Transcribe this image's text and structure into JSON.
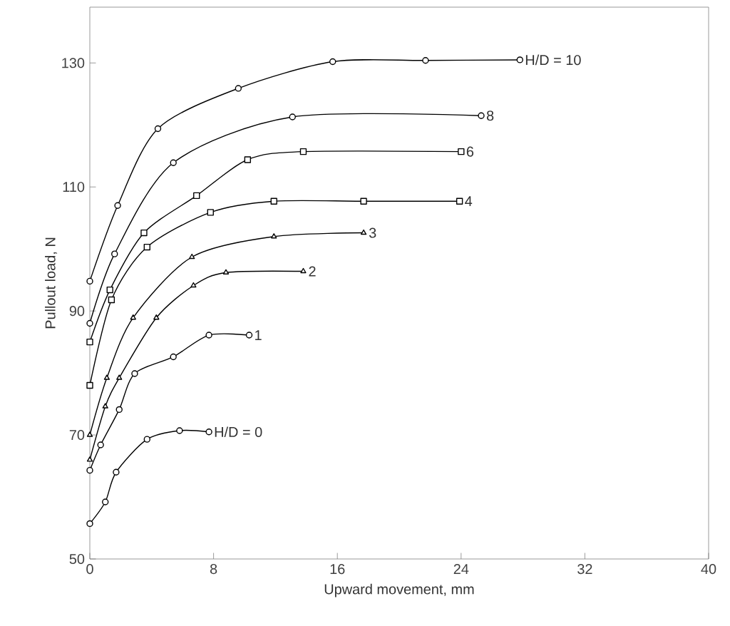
{
  "chart_data": {
    "type": "line",
    "xlabel": "Upward movement, mm",
    "ylabel": "Pullout load, N",
    "xlim": [
      0,
      40
    ],
    "ylim": [
      50,
      139
    ],
    "xticks": [
      0,
      8,
      16,
      24,
      32,
      40
    ],
    "yticks": [
      50,
      70,
      90,
      110,
      130
    ],
    "grid": false,
    "series": [
      {
        "name": "H/D = 0",
        "color": "#000000",
        "marker": "circle",
        "x": [
          0,
          1.0,
          1.7,
          3.7,
          5.8,
          7.7
        ],
        "values": [
          55.7,
          59.2,
          64,
          69.3,
          70.7,
          70.5
        ]
      },
      {
        "name": "1",
        "color": "#000000",
        "marker": "circle",
        "x": [
          0,
          0.7,
          1.9,
          2.9,
          5.4,
          7.7,
          10.3
        ],
        "values": [
          64.3,
          68.4,
          74.1,
          79.9,
          82.6,
          86.1,
          86.1
        ]
      },
      {
        "name": "2",
        "color": "#000000",
        "marker": "triangle",
        "x": [
          0,
          1.0,
          1.9,
          4.3,
          6.7,
          8.8,
          13.8
        ],
        "values": [
          66,
          74.6,
          79.2,
          88.9,
          94.1,
          96.2,
          96.4
        ]
      },
      {
        "name": "3",
        "color": "#000000",
        "marker": "triangle",
        "x": [
          0,
          1.1,
          2.8,
          6.6,
          11.9,
          17.7
        ],
        "values": [
          70,
          79.2,
          88.9,
          98.7,
          102,
          102.6
        ]
      },
      {
        "name": "4",
        "color": "#000000",
        "marker": "square",
        "x": [
          0,
          1.4,
          3.7,
          7.8,
          11.9,
          17.7,
          23.9
        ],
        "values": [
          78,
          91.8,
          100.3,
          105.9,
          107.7,
          107.7,
          107.7
        ]
      },
      {
        "name": "6",
        "color": "#000000",
        "marker": "square",
        "x": [
          0,
          1.3,
          3.5,
          6.9,
          10.2,
          13.8,
          24
        ],
        "values": [
          85,
          93.4,
          102.6,
          108.6,
          114.4,
          115.7,
          115.7
        ]
      },
      {
        "name": "8",
        "color": "#000000",
        "marker": "circle",
        "x": [
          0,
          1.6,
          5.4,
          13.1,
          25.3
        ],
        "values": [
          88,
          99.2,
          113.9,
          121.3,
          121.5
        ]
      },
      {
        "name": "H/D = 10",
        "color": "#000000",
        "marker": "circle",
        "x": [
          0,
          1.8,
          4.4,
          9.6,
          15.7,
          21.7,
          27.8
        ],
        "values": [
          94.8,
          107,
          119.4,
          125.9,
          130.2,
          130.4,
          130.5
        ]
      }
    ]
  }
}
